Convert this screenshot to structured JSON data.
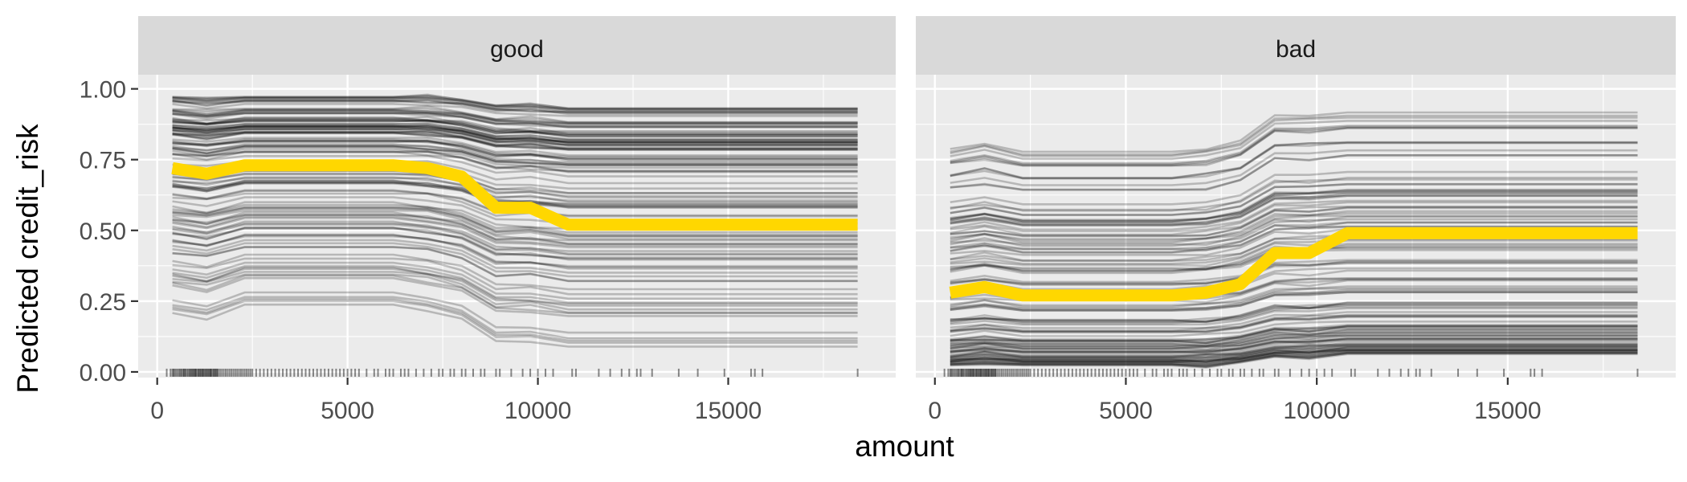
{
  "chart_data": {
    "type": "line",
    "xlabel": "amount",
    "ylabel": "Predicted credit_risk",
    "xlim": [
      -500,
      19400
    ],
    "ylim": [
      -0.02,
      1.05
    ],
    "x_ticks": [
      0,
      5000,
      10000,
      15000
    ],
    "y_ticks": [
      0.0,
      0.25,
      0.5,
      0.75,
      1.0
    ],
    "y_tick_labels": [
      "0.00",
      "0.25",
      "0.50",
      "0.75",
      "1.00"
    ],
    "grid": true,
    "x_grid": [
      400,
      1300,
      2300,
      6200,
      7100,
      8000,
      8900,
      9800,
      10800,
      18400
    ],
    "ice_line_count": 120,
    "colors": {
      "panel_bg": "#ebebeb",
      "strip_bg": "#d9d9d9",
      "grid": "#ffffff",
      "ice_line": "#000000",
      "pdp_line": "#ffd700",
      "rug": "#000000"
    },
    "panels": [
      {
        "label": "good",
        "pdp": [
          0.72,
          0.7,
          0.73,
          0.73,
          0.72,
          0.69,
          0.58,
          0.58,
          0.52,
          0.52
        ],
        "ice_top": [
          0.97,
          0.96,
          0.97,
          0.97,
          0.97,
          0.96,
          0.94,
          0.94,
          0.93,
          0.93
        ],
        "ice_bottom": [
          0.2,
          0.18,
          0.23,
          0.23,
          0.21,
          0.18,
          0.1,
          0.1,
          0.08,
          0.08
        ]
      },
      {
        "label": "bad",
        "pdp": [
          0.28,
          0.3,
          0.27,
          0.27,
          0.28,
          0.31,
          0.42,
          0.42,
          0.49,
          0.49
        ],
        "ice_top": [
          0.8,
          0.82,
          0.79,
          0.79,
          0.8,
          0.83,
          0.92,
          0.92,
          0.93,
          0.93
        ],
        "ice_bottom": [
          0.03,
          0.04,
          0.03,
          0.03,
          0.03,
          0.04,
          0.06,
          0.06,
          0.07,
          0.07
        ]
      }
    ],
    "rug": [
      250,
      350,
      400,
      430,
      460,
      500,
      540,
      580,
      610,
      640,
      680,
      700,
      730,
      750,
      790,
      820,
      850,
      880,
      900,
      930,
      950,
      980,
      1000,
      1020,
      1050,
      1080,
      1100,
      1130,
      1150,
      1180,
      1200,
      1220,
      1250,
      1280,
      1300,
      1330,
      1350,
      1380,
      1400,
      1420,
      1450,
      1480,
      1500,
      1530,
      1550,
      1580,
      1600,
      1650,
      1700,
      1750,
      1800,
      1850,
      1900,
      1950,
      2000,
      2050,
      2100,
      2150,
      2200,
      2250,
      2300,
      2350,
      2400,
      2450,
      2500,
      2600,
      2700,
      2800,
      2900,
      3000,
      3100,
      3200,
      3300,
      3400,
      3500,
      3600,
      3700,
      3800,
      3900,
      4000,
      4100,
      4200,
      4300,
      4400,
      4500,
      4600,
      4700,
      4800,
      4900,
      5000,
      5100,
      5200,
      5300,
      5500,
      5700,
      5800,
      6000,
      6100,
      6200,
      6400,
      6500,
      6600,
      6800,
      7000,
      7200,
      7400,
      7500,
      7700,
      7800,
      8000,
      8100,
      8300,
      8500,
      8600,
      8900,
      9000,
      9300,
      9600,
      9800,
      10000,
      10200,
      10400,
      10900,
      11000,
      11600,
      11900,
      12200,
      12400,
      12600,
      12700,
      13000,
      13700,
      14200,
      14900,
      15600,
      15700,
      15900,
      18400
    ]
  }
}
